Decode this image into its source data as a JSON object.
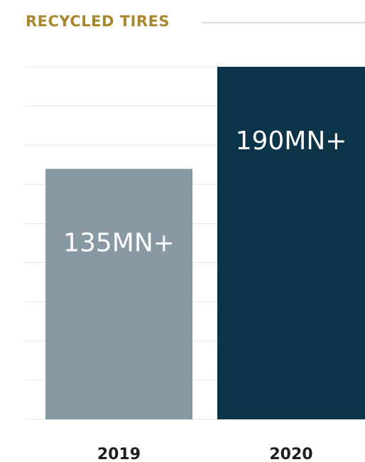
{
  "chart_data": {
    "type": "bar",
    "title": "RECYCLED TIRES",
    "categories": [
      "2019",
      "2020"
    ],
    "values": [
      135,
      190
    ],
    "value_labels": [
      "135MN+",
      "190MN+"
    ],
    "unit": "MN+",
    "ylim": [
      0,
      190
    ],
    "grid": true,
    "legend": "none",
    "colors": {
      "bars": [
        "#8899a3",
        "#0c3549"
      ],
      "title": "#a8872f",
      "grid": "#e6e6e6",
      "labels": "#1f1f1f"
    }
  }
}
